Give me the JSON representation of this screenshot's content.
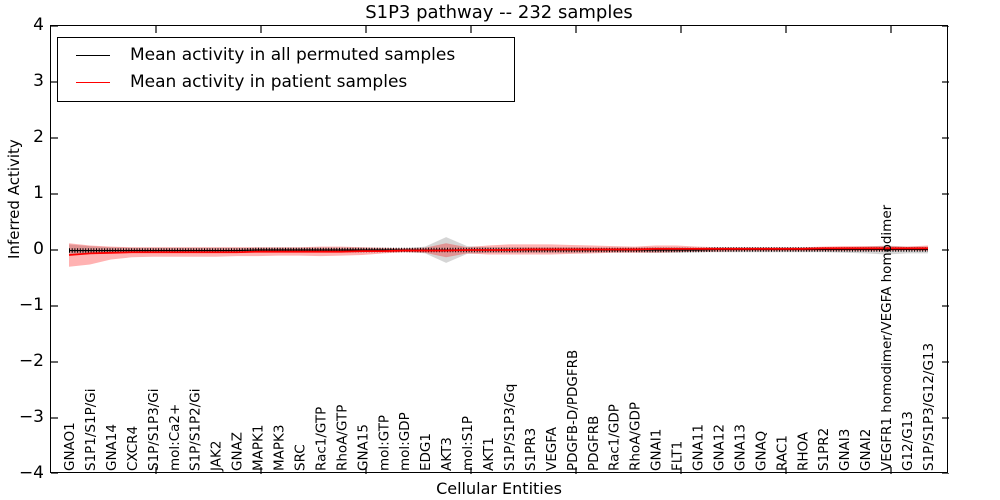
{
  "title": "S1P3 pathway -- 232 samples",
  "chart_data": {
    "type": "line",
    "title": "S1P3 pathway -- 232 samples",
    "xlabel": "Cellular Entities",
    "ylabel": "Inferred Activity",
    "ylim": [
      -4,
      4
    ],
    "yticks": [
      4,
      3,
      2,
      1,
      0,
      -1,
      -2,
      -3,
      -4
    ],
    "ytick_labels": [
      "4",
      "3",
      "2",
      "1",
      "0",
      "−1",
      "−2",
      "−3",
      "−4"
    ],
    "grid": false,
    "legend_position": "upper left",
    "categories": [
      "GNAO1",
      "S1P1/S1P/Gi",
      "GNA14",
      "CXCR4",
      "S1P/S1P3/Gi",
      "mol:Ca2+",
      "S1P/S1P2/Gi",
      "JAK2",
      "GNAZ",
      "MAPK1",
      "MAPK3",
      "SRC",
      "Rac1/GTP",
      "RhoA/GTP",
      "GNA15",
      "mol:GTP",
      "mol:GDP",
      "EDG1",
      "AKT3",
      "mol:S1P",
      "AKT1",
      "S1P/S1P3/Gq",
      "S1PR3",
      "VEGFA",
      "PDGFB-D/PDGFRB",
      "PDGFRB",
      "Rac1/GDP",
      "RhoA/GDP",
      "GNAI1",
      "FLT1",
      "GNA11",
      "GNA12",
      "GNA13",
      "GNAQ",
      "RAC1",
      "RHOA",
      "S1PR2",
      "GNAI3",
      "GNAI2",
      "VEGFR1 homodimer/VEGFA homodimer",
      "G12/G13",
      "S1P/S1P3/G12/G13"
    ],
    "series": [
      {
        "name": "Mean activity in all permuted samples",
        "color": "#000000",
        "band_color": "rgba(150,150,150,0.40)",
        "values": [
          -0.01,
          -0.01,
          -0.01,
          -0.01,
          -0.01,
          -0.01,
          -0.01,
          -0.01,
          -0.01,
          0,
          0,
          0,
          0,
          0,
          0,
          0,
          0,
          0,
          0,
          0,
          0,
          0,
          0,
          0,
          0,
          0,
          0,
          0,
          0,
          0,
          0,
          0.01,
          0.01,
          0.01,
          0.01,
          0.01,
          0.01,
          0.01,
          0.01,
          0.01,
          0.01,
          0.01
        ],
        "band_upper": [
          0.1,
          0.07,
          0.05,
          0.04,
          0.04,
          0.04,
          0.04,
          0.04,
          0.04,
          0.04,
          0.04,
          0.04,
          0.04,
          0.04,
          0.04,
          0.03,
          0.03,
          0.06,
          0.23,
          0.07,
          0.05,
          0.05,
          0.05,
          0.05,
          0.05,
          0.04,
          0.04,
          0.04,
          0.05,
          0.05,
          0.04,
          0.04,
          0.04,
          0.04,
          0.04,
          0.04,
          0.04,
          0.05,
          0.06,
          0.08,
          0.06,
          0.06
        ],
        "band_lower": [
          -0.1,
          -0.07,
          -0.05,
          -0.04,
          -0.04,
          -0.04,
          -0.04,
          -0.04,
          -0.04,
          -0.04,
          -0.04,
          -0.04,
          -0.04,
          -0.04,
          -0.04,
          -0.03,
          -0.03,
          -0.06,
          -0.23,
          -0.07,
          -0.05,
          -0.05,
          -0.05,
          -0.05,
          -0.05,
          -0.04,
          -0.04,
          -0.04,
          -0.05,
          -0.05,
          -0.04,
          -0.04,
          -0.04,
          -0.04,
          -0.04,
          -0.04,
          -0.04,
          -0.05,
          -0.06,
          -0.08,
          -0.06,
          -0.06
        ]
      },
      {
        "name": "Mean activity in patient samples",
        "color": "#ff0000",
        "band_color": "rgba(255,0,0,0.30)",
        "values": [
          -0.09,
          -0.06,
          -0.05,
          -0.04,
          -0.04,
          -0.04,
          -0.04,
          -0.04,
          -0.04,
          -0.03,
          -0.03,
          -0.03,
          -0.03,
          -0.03,
          -0.02,
          -0.02,
          -0.01,
          -0.01,
          -0.01,
          0,
          0,
          0,
          0.01,
          0.01,
          0.01,
          0.01,
          0.01,
          0.01,
          0.02,
          0.02,
          0.02,
          0.02,
          0.02,
          0.02,
          0.02,
          0.02,
          0.03,
          0.03,
          0.03,
          0.03,
          0.03,
          0.03
        ],
        "band_upper": [
          0.12,
          0.08,
          0.06,
          0.05,
          0.05,
          0.05,
          0.05,
          0.05,
          0.05,
          0.05,
          0.05,
          0.05,
          0.06,
          0.06,
          0.05,
          0.04,
          0.03,
          0.04,
          0.12,
          0.05,
          0.08,
          0.1,
          0.1,
          0.1,
          0.09,
          0.08,
          0.07,
          0.06,
          0.08,
          0.08,
          0.06,
          0.05,
          0.05,
          0.05,
          0.05,
          0.05,
          0.06,
          0.07,
          0.07,
          0.07,
          0.06,
          0.08
        ],
        "band_lower": [
          -0.3,
          -0.26,
          -0.17,
          -0.13,
          -0.12,
          -0.12,
          -0.12,
          -0.12,
          -0.11,
          -0.11,
          -0.1,
          -0.1,
          -0.11,
          -0.1,
          -0.09,
          -0.06,
          -0.04,
          -0.05,
          -0.13,
          -0.06,
          -0.08,
          -0.08,
          -0.08,
          -0.08,
          -0.07,
          -0.06,
          -0.05,
          -0.05,
          -0.05,
          -0.04,
          -0.03,
          -0.03,
          -0.02,
          -0.02,
          -0.02,
          -0.02,
          -0.02,
          -0.02,
          -0.02,
          -0.02,
          -0.01,
          -0.02
        ]
      }
    ]
  }
}
